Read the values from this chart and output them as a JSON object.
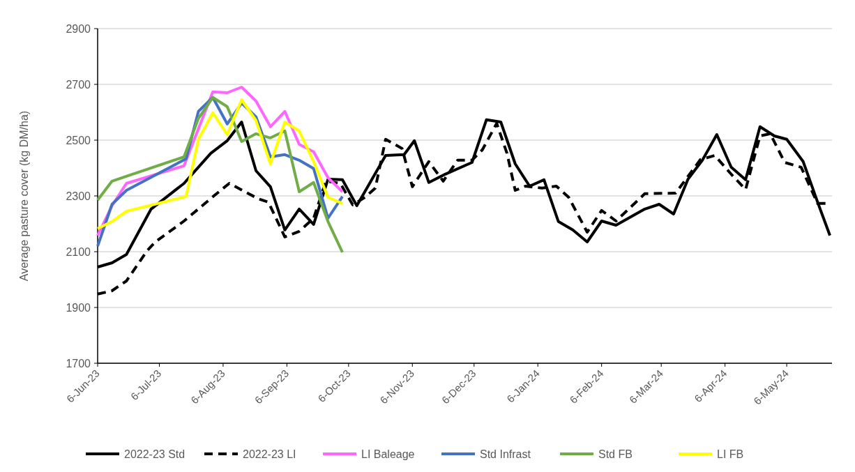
{
  "chart_data": {
    "type": "line",
    "ylabel": "Average pasture cover (kg DM/ha)",
    "ylim": [
      1700,
      2900
    ],
    "yticks": [
      1700,
      1900,
      2100,
      2300,
      2500,
      2700,
      2900
    ],
    "xlim": [
      "2023-06-06",
      "2024-05-28"
    ],
    "xticks": [
      {
        "value": "2023-06-06",
        "label": "6-Jun-23"
      },
      {
        "value": "2023-07-06",
        "label": "6-Jul-23"
      },
      {
        "value": "2023-08-06",
        "label": "6-Aug-23"
      },
      {
        "value": "2023-09-06",
        "label": "6-Sep-23"
      },
      {
        "value": "2023-10-06",
        "label": "6-Oct-23"
      },
      {
        "value": "2023-11-06",
        "label": "6-Nov-23"
      },
      {
        "value": "2023-12-06",
        "label": "6-Dec-23"
      },
      {
        "value": "2024-01-06",
        "label": "6-Jan-24"
      },
      {
        "value": "2024-02-06",
        "label": "6-Feb-24"
      },
      {
        "value": "2024-03-06",
        "label": "6-Mar-24"
      },
      {
        "value": "2024-04-06",
        "label": "6-Apr-24"
      },
      {
        "value": "2024-05-06",
        "label": "6-May-24"
      }
    ],
    "grid": "y",
    "legend": "bottom",
    "marker": "none",
    "series": [
      {
        "name": "2022-23 Std",
        "color": "#000000",
        "line_style": "solid",
        "x": [
          "2023-06-06",
          "2023-06-13",
          "2023-06-20",
          "2023-07-02",
          "2023-07-18",
          "2023-07-31",
          "2023-08-08",
          "2023-08-15",
          "2023-08-22",
          "2023-08-29",
          "2023-09-05",
          "2023-09-12",
          "2023-09-19",
          "2023-09-26",
          "2023-10-03",
          "2023-10-10",
          "2023-10-24",
          "2023-11-02",
          "2023-11-07",
          "2023-11-14",
          "2023-11-22",
          "2023-12-05",
          "2023-12-12",
          "2023-12-19",
          "2023-12-26",
          "2024-01-02",
          "2024-01-09",
          "2024-01-16",
          "2024-01-23",
          "2024-01-30",
          "2024-02-06",
          "2024-02-13",
          "2024-02-27",
          "2024-03-05",
          "2024-03-12",
          "2024-03-19",
          "2024-03-26",
          "2024-04-02",
          "2024-04-09",
          "2024-04-16",
          "2024-04-23",
          "2024-04-30",
          "2024-05-06",
          "2024-05-14",
          "2024-05-21",
          "2024-05-27"
        ],
        "values": [
          2045,
          2060,
          2090,
          2253,
          2345,
          2453,
          2498,
          2565,
          2390,
          2333,
          2178,
          2253,
          2198,
          2360,
          2358,
          2265,
          2445,
          2448,
          2498,
          2348,
          2378,
          2420,
          2573,
          2565,
          2415,
          2335,
          2358,
          2208,
          2178,
          2135,
          2210,
          2195,
          2253,
          2270,
          2235,
          2360,
          2428,
          2520,
          2403,
          2358,
          2548,
          2515,
          2503,
          2423,
          2278,
          2158
        ]
      },
      {
        "name": "2022-23 LI",
        "color": "#000000",
        "line_style": "dashed",
        "x": [
          "2023-06-06",
          "2023-06-13",
          "2023-06-20",
          "2023-06-30",
          "2023-07-04",
          "2023-07-18",
          "2023-08-02",
          "2023-08-09",
          "2023-08-23",
          "2023-08-28",
          "2023-09-05",
          "2023-09-12",
          "2023-09-19",
          "2023-09-25",
          "2023-10-02",
          "2023-10-08",
          "2023-10-14",
          "2023-10-19",
          "2023-10-24",
          "2023-11-01",
          "2023-11-06",
          "2023-11-14",
          "2023-11-21",
          "2023-11-28",
          "2023-12-05",
          "2023-12-10",
          "2023-12-17",
          "2023-12-22",
          "2023-12-26",
          "2023-12-31",
          "2024-01-08",
          "2024-01-15",
          "2024-01-21",
          "2024-01-30",
          "2024-02-06",
          "2024-02-13",
          "2024-02-27",
          "2024-03-13",
          "2024-03-18",
          "2024-03-25",
          "2024-04-01",
          "2024-04-09",
          "2024-04-16",
          "2024-04-23",
          "2024-04-28",
          "2024-05-05",
          "2024-05-13",
          "2024-05-21",
          "2024-05-25"
        ],
        "values": [
          1948,
          1960,
          1995,
          2103,
          2135,
          2210,
          2303,
          2345,
          2290,
          2278,
          2153,
          2173,
          2220,
          2353,
          2345,
          2268,
          2295,
          2328,
          2503,
          2470,
          2333,
          2423,
          2353,
          2428,
          2428,
          2465,
          2560,
          2453,
          2320,
          2335,
          2328,
          2335,
          2295,
          2170,
          2248,
          2210,
          2308,
          2310,
          2360,
          2430,
          2445,
          2378,
          2323,
          2515,
          2523,
          2420,
          2403,
          2273,
          2273
        ]
      },
      {
        "name": "LI Baleage",
        "color": "#ff66ff",
        "line_style": "solid",
        "x": [
          "2023-06-06",
          "2023-06-13",
          "2023-06-20",
          "2023-07-18",
          "2023-08-01",
          "2023-08-08",
          "2023-08-15",
          "2023-08-22",
          "2023-08-29",
          "2023-09-05",
          "2023-09-12",
          "2023-09-19",
          "2023-09-26",
          "2023-10-03"
        ],
        "values": [
          2158,
          2265,
          2345,
          2408,
          2673,
          2670,
          2690,
          2640,
          2548,
          2603,
          2485,
          2458,
          2365,
          2315
        ]
      },
      {
        "name": "Std Infrast",
        "color": "#4472c4",
        "line_style": "solid",
        "x": [
          "2023-06-06",
          "2023-06-13",
          "2023-06-20",
          "2023-07-19",
          "2023-07-25",
          "2023-08-01",
          "2023-08-08",
          "2023-08-15",
          "2023-08-22",
          "2023-08-29",
          "2023-09-05",
          "2023-09-12",
          "2023-09-19",
          "2023-09-26",
          "2023-10-03"
        ],
        "values": [
          2120,
          2270,
          2320,
          2433,
          2603,
          2653,
          2558,
          2633,
          2583,
          2440,
          2448,
          2428,
          2398,
          2220,
          2298
        ]
      },
      {
        "name": "Std FB",
        "color": "#70ad47",
        "line_style": "solid",
        "x": [
          "2023-06-06",
          "2023-06-13",
          "2023-07-18",
          "2023-07-25",
          "2023-08-01",
          "2023-08-08",
          "2023-08-15",
          "2023-08-22",
          "2023-08-29",
          "2023-09-05",
          "2023-09-12",
          "2023-09-19",
          "2023-09-26",
          "2023-10-03"
        ],
        "values": [
          2285,
          2353,
          2440,
          2578,
          2653,
          2620,
          2495,
          2523,
          2508,
          2533,
          2315,
          2348,
          2208,
          2098
        ]
      },
      {
        "name": "LI FB",
        "color": "#ffff00",
        "line_style": "solid",
        "x": [
          "2023-06-06",
          "2023-06-13",
          "2023-06-20",
          "2023-07-19",
          "2023-07-25",
          "2023-08-01",
          "2023-08-08",
          "2023-08-15",
          "2023-08-22",
          "2023-08-29",
          "2023-09-05",
          "2023-09-12",
          "2023-09-19",
          "2023-09-26",
          "2023-10-03"
        ],
        "values": [
          2183,
          2208,
          2245,
          2298,
          2503,
          2598,
          2520,
          2645,
          2570,
          2415,
          2565,
          2533,
          2423,
          2295,
          2273
        ]
      }
    ]
  }
}
